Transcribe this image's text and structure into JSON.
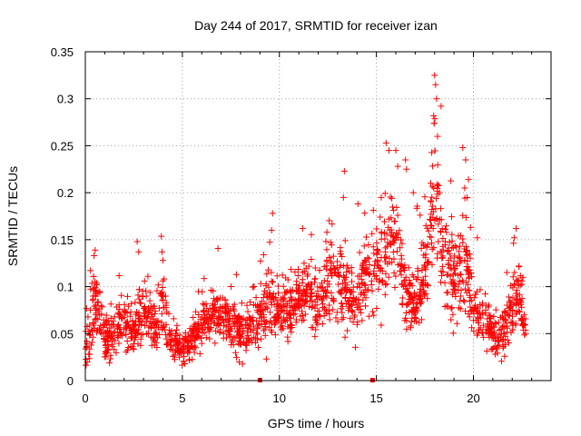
{
  "chart_data": {
    "type": "scatter",
    "title": "Day 244 of 2017, SRMTID for receiver izan",
    "xlabel": "GPS time / hours",
    "ylabel": "SRMTID / TECUs",
    "xlim": [
      0,
      24
    ],
    "ylim": [
      0,
      0.35
    ],
    "x_ticks": [
      0,
      5,
      10,
      15,
      20
    ],
    "x_tick_labels": [
      "0",
      "5",
      "10",
      "15",
      "20"
    ],
    "y_ticks": [
      0,
      0.05,
      0.1,
      0.15,
      0.2,
      0.25,
      0.3,
      0.35
    ],
    "y_tick_labels": [
      "0",
      "0.05",
      "0.1",
      "0.15",
      "0.2",
      "0.25",
      "0.3",
      "0.35"
    ],
    "grid": true,
    "marker": "plus",
    "color": "#ff0000",
    "zero_points": [
      [
        9.0,
        0.0
      ],
      [
        14.8,
        0.0
      ]
    ],
    "series": [
      {
        "name": "SRMTID",
        "density_profile": [
          [
            0.0,
            0.04,
            0.02
          ],
          [
            0.3,
            0.06,
            0.03
          ],
          [
            0.5,
            0.09,
            0.03
          ],
          [
            1.0,
            0.04,
            0.02
          ],
          [
            1.5,
            0.05,
            0.02
          ],
          [
            2.0,
            0.06,
            0.02
          ],
          [
            2.5,
            0.05,
            0.02
          ],
          [
            3.0,
            0.08,
            0.03
          ],
          [
            3.5,
            0.06,
            0.02
          ],
          [
            4.0,
            0.08,
            0.03
          ],
          [
            4.5,
            0.04,
            0.015
          ],
          [
            5.0,
            0.035,
            0.015
          ],
          [
            5.5,
            0.04,
            0.015
          ],
          [
            6.0,
            0.06,
            0.02
          ],
          [
            6.5,
            0.07,
            0.02
          ],
          [
            7.0,
            0.07,
            0.02
          ],
          [
            7.5,
            0.06,
            0.02
          ],
          [
            8.0,
            0.05,
            0.02
          ],
          [
            8.5,
            0.06,
            0.02
          ],
          [
            9.0,
            0.07,
            0.025
          ],
          [
            9.5,
            0.08,
            0.03
          ],
          [
            10.0,
            0.07,
            0.02
          ],
          [
            10.5,
            0.08,
            0.025
          ],
          [
            11.0,
            0.085,
            0.025
          ],
          [
            11.5,
            0.09,
            0.03
          ],
          [
            12.0,
            0.08,
            0.025
          ],
          [
            12.5,
            0.1,
            0.03
          ],
          [
            13.0,
            0.11,
            0.035
          ],
          [
            13.5,
            0.09,
            0.03
          ],
          [
            14.0,
            0.09,
            0.03
          ],
          [
            14.5,
            0.11,
            0.035
          ],
          [
            15.0,
            0.12,
            0.04
          ],
          [
            15.5,
            0.14,
            0.045
          ],
          [
            16.0,
            0.15,
            0.04
          ],
          [
            16.5,
            0.09,
            0.03
          ],
          [
            17.0,
            0.08,
            0.025
          ],
          [
            17.5,
            0.12,
            0.04
          ],
          [
            18.0,
            0.2,
            0.06
          ],
          [
            18.5,
            0.12,
            0.04
          ],
          [
            19.0,
            0.1,
            0.04
          ],
          [
            19.5,
            0.13,
            0.045
          ],
          [
            20.0,
            0.08,
            0.025
          ],
          [
            20.5,
            0.07,
            0.025
          ],
          [
            21.0,
            0.05,
            0.02
          ],
          [
            21.5,
            0.05,
            0.02
          ],
          [
            22.0,
            0.08,
            0.03
          ],
          [
            22.3,
            0.1,
            0.03
          ],
          [
            22.7,
            0.05,
            0.015
          ]
        ],
        "peaks": [
          [
            18.0,
            0.325
          ],
          [
            18.05,
            0.315
          ],
          [
            18.1,
            0.3
          ],
          [
            17.95,
            0.282
          ],
          [
            18.15,
            0.26
          ],
          [
            15.5,
            0.253
          ],
          [
            15.65,
            0.245
          ],
          [
            16.0,
            0.245
          ],
          [
            16.1,
            0.228
          ],
          [
            16.5,
            0.235
          ],
          [
            16.55,
            0.225
          ],
          [
            19.45,
            0.248
          ],
          [
            19.6,
            0.235
          ],
          [
            13.35,
            0.223
          ],
          [
            13.3,
            0.195
          ],
          [
            17.8,
            0.21
          ],
          [
            18.25,
            0.2
          ],
          [
            16.9,
            0.2
          ],
          [
            19.55,
            0.205
          ],
          [
            9.65,
            0.178
          ],
          [
            9.6,
            0.16
          ],
          [
            11.2,
            0.162
          ],
          [
            22.2,
            0.162
          ],
          [
            22.1,
            0.152
          ],
          [
            0.45,
            0.133
          ],
          [
            2.75,
            0.137
          ],
          [
            3.95,
            0.137
          ],
          [
            4.0,
            0.128
          ],
          [
            20.2,
            0.152
          ],
          [
            14.05,
            0.188
          ],
          [
            15.25,
            0.195
          ],
          [
            17.55,
            0.165
          ],
          [
            12.45,
            0.158
          ],
          [
            12.4,
            0.148
          ]
        ],
        "point_count": 2000
      }
    ]
  }
}
